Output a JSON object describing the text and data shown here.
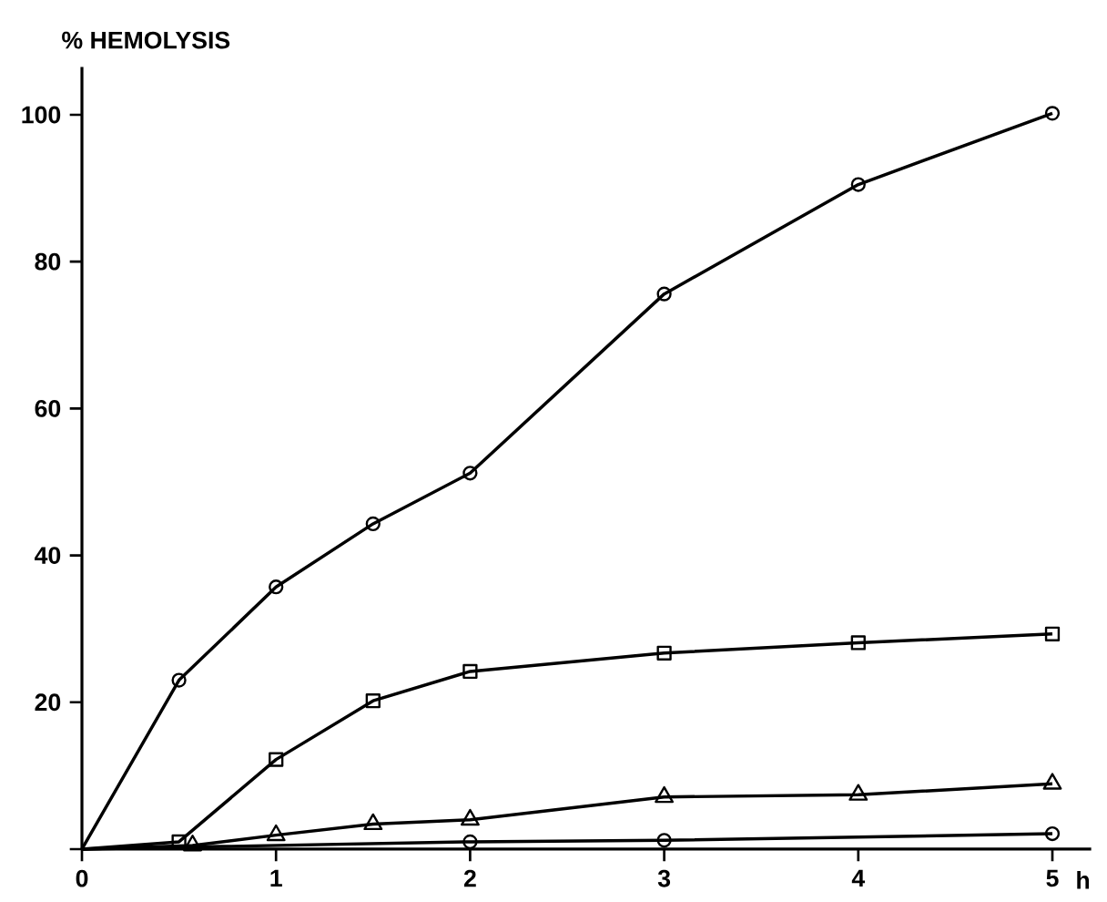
{
  "chart_data": {
    "type": "line",
    "ylabel": "% HEMOLYSIS",
    "xlabel": "h",
    "xlim": [
      0,
      5.2
    ],
    "ylim": [
      0,
      106.5
    ],
    "xticks": [
      0,
      1,
      2,
      3,
      4,
      5
    ],
    "yticks": [
      {
        "value": 0,
        "label": null
      },
      20,
      40,
      60,
      80,
      100
    ],
    "grid": false,
    "line_style": "solid",
    "series": [
      {
        "color": "#000000",
        "marker": "circle",
        "x": [
          0,
          0.5,
          1,
          1.5,
          2,
          3,
          4,
          5
        ],
        "values": [
          0,
          23,
          35.7,
          44.3,
          51.2,
          75.6,
          90.5,
          100.2
        ]
      },
      {
        "color": "#000000",
        "marker": "square",
        "x": [
          0,
          0.5,
          1,
          1.5,
          2,
          3,
          4,
          5
        ],
        "values": [
          0,
          1,
          12.2,
          20.2,
          24.2,
          26.7,
          28.1,
          29.3
        ]
      },
      {
        "color": "#000000",
        "marker": "triangle",
        "x": [
          0,
          0.57,
          1,
          1.5,
          2,
          3,
          4,
          5
        ],
        "values": [
          0,
          0.5,
          1.9,
          3.4,
          4.0,
          7.1,
          7.4,
          8.9
        ]
      },
      {
        "color": "#000000",
        "marker": "circle",
        "x": [
          0,
          2,
          3,
          5
        ],
        "values": [
          0,
          1.0,
          1.2,
          2.1
        ]
      }
    ]
  }
}
